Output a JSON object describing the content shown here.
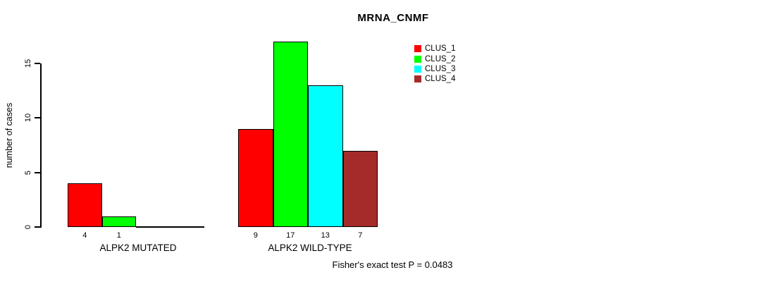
{
  "title": "MRNA_CNMF",
  "footer": "Fisher's exact test P = 0.0483",
  "colors": {
    "clus_1": "#FF0000",
    "clus_2": "#00FF00",
    "clus_3": "#00FFFF",
    "clus_4": "#A52A2A",
    "axis": "#000000"
  },
  "chart_data": {
    "type": "bar",
    "title": "MRNA_CNMF",
    "xlabel": "",
    "ylabel": "number of cases",
    "ylim": [
      0,
      17
    ],
    "yticks": [
      0,
      5,
      10,
      15
    ],
    "grid": false,
    "legend_position": "top-right",
    "bar_value_labels_visible": true,
    "categories": [
      "ALPK2 MUTATED",
      "ALPK2 WILD-TYPE"
    ],
    "series": [
      {
        "name": "CLUS_1",
        "color": "#FF0000",
        "values": [
          4,
          9
        ]
      },
      {
        "name": "CLUS_2",
        "color": "#00FF00",
        "values": [
          1,
          17
        ]
      },
      {
        "name": "CLUS_3",
        "color": "#00FFFF",
        "values": [
          0,
          13
        ]
      },
      {
        "name": "CLUS_4",
        "color": "#A52A2A",
        "values": [
          0,
          7
        ]
      }
    ],
    "annotation": "Fisher's exact test P = 0.0483"
  }
}
